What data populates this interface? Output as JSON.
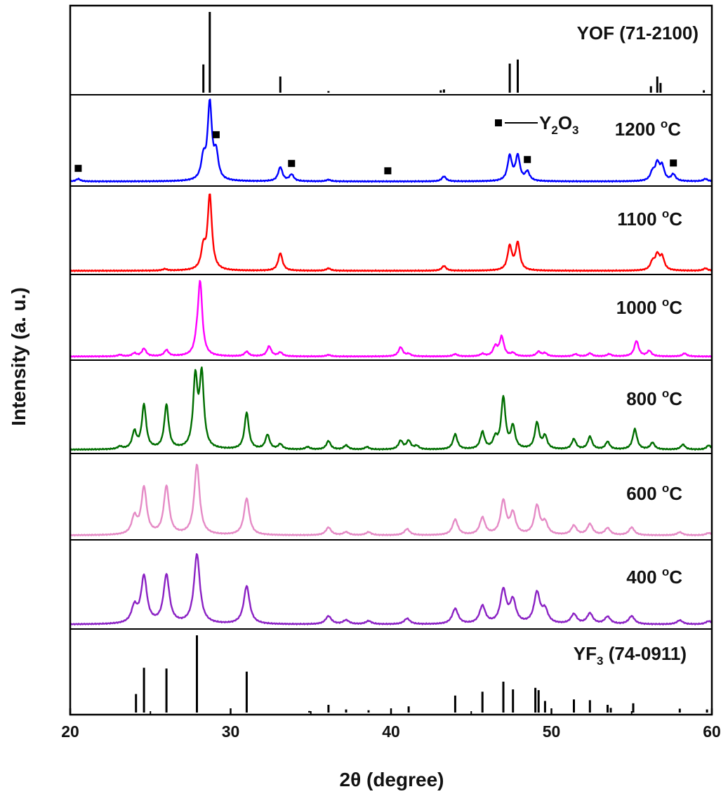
{
  "chart_data": {
    "type": "line",
    "layout": "stacked-panels",
    "xlabel": "2θ (degree)",
    "ylabel": "Intensity (a. u.)",
    "xlim": [
      20,
      60
    ],
    "xticks": [
      20,
      30,
      40,
      50,
      60
    ],
    "panels": [
      {
        "key": "yof",
        "kind": "reference",
        "label": "YOF (71-2100)",
        "label_main": "YOF (71-2100)",
        "color": "#000000",
        "sticks": [
          {
            "x": 28.3,
            "h": 0.35
          },
          {
            "x": 28.7,
            "h": 1.0
          },
          {
            "x": 33.1,
            "h": 0.2
          },
          {
            "x": 36.1,
            "h": 0.02
          },
          {
            "x": 43.1,
            "h": 0.03
          },
          {
            "x": 43.3,
            "h": 0.04
          },
          {
            "x": 47.4,
            "h": 0.36
          },
          {
            "x": 47.9,
            "h": 0.41
          },
          {
            "x": 56.2,
            "h": 0.08
          },
          {
            "x": 56.6,
            "h": 0.2
          },
          {
            "x": 56.8,
            "h": 0.12
          },
          {
            "x": 59.5,
            "h": 0.03
          }
        ]
      },
      {
        "key": "t1200",
        "kind": "pattern",
        "label": "1200 °C",
        "label_main": "1200 ",
        "label_sup": "o",
        "label_tail": "C",
        "color": "#0000ff",
        "baseline": 0.03,
        "width": 0.16,
        "peaks": [
          {
            "x": 20.5,
            "h": 0.03
          },
          {
            "x": 28.3,
            "h": 0.25
          },
          {
            "x": 28.7,
            "h": 0.92
          },
          {
            "x": 29.1,
            "h": 0.3
          },
          {
            "x": 33.1,
            "h": 0.17
          },
          {
            "x": 33.8,
            "h": 0.08
          },
          {
            "x": 36.1,
            "h": 0.02
          },
          {
            "x": 43.3,
            "h": 0.06
          },
          {
            "x": 47.4,
            "h": 0.3
          },
          {
            "x": 47.9,
            "h": 0.3
          },
          {
            "x": 48.5,
            "h": 0.11
          },
          {
            "x": 56.3,
            "h": 0.1
          },
          {
            "x": 56.6,
            "h": 0.2
          },
          {
            "x": 56.9,
            "h": 0.17
          },
          {
            "x": 57.6,
            "h": 0.08
          },
          {
            "x": 59.6,
            "h": 0.03
          }
        ],
        "markers": [
          20.5,
          29.1,
          33.8,
          39.8,
          48.5,
          57.6
        ],
        "marker_legend": {
          "label": "Y",
          "sub1": "2",
          "mid": "O",
          "sub2": "3"
        }
      },
      {
        "key": "t1100",
        "kind": "pattern",
        "label": "1100 °C",
        "label_main": "1100 ",
        "label_sup": "o",
        "label_tail": "C",
        "color": "#ff0000",
        "baseline": 0.02,
        "width": 0.16,
        "peaks": [
          {
            "x": 25.9,
            "h": 0.02
          },
          {
            "x": 28.3,
            "h": 0.26
          },
          {
            "x": 28.7,
            "h": 0.93
          },
          {
            "x": 33.1,
            "h": 0.22
          },
          {
            "x": 36.1,
            "h": 0.03
          },
          {
            "x": 43.3,
            "h": 0.06
          },
          {
            "x": 47.4,
            "h": 0.3
          },
          {
            "x": 47.9,
            "h": 0.34
          },
          {
            "x": 56.3,
            "h": 0.1
          },
          {
            "x": 56.6,
            "h": 0.18
          },
          {
            "x": 56.9,
            "h": 0.16
          },
          {
            "x": 59.6,
            "h": 0.03
          }
        ]
      },
      {
        "key": "t1000",
        "kind": "pattern",
        "label": "1000 °C",
        "label_main": "1000 ",
        "label_sup": "o",
        "label_tail": "C",
        "color": "#ff00ff",
        "baseline": 0.02,
        "width": 0.16,
        "peaks": [
          {
            "x": 23.1,
            "h": 0.02
          },
          {
            "x": 24.0,
            "h": 0.04
          },
          {
            "x": 24.6,
            "h": 0.1
          },
          {
            "x": 26.0,
            "h": 0.08
          },
          {
            "x": 27.9,
            "h": 0.12
          },
          {
            "x": 28.1,
            "h": 0.94
          },
          {
            "x": 31.0,
            "h": 0.06
          },
          {
            "x": 32.4,
            "h": 0.13
          },
          {
            "x": 33.1,
            "h": 0.05
          },
          {
            "x": 36.1,
            "h": 0.02
          },
          {
            "x": 40.6,
            "h": 0.12
          },
          {
            "x": 41.1,
            "h": 0.03
          },
          {
            "x": 44.0,
            "h": 0.03
          },
          {
            "x": 45.7,
            "h": 0.03
          },
          {
            "x": 46.5,
            "h": 0.12
          },
          {
            "x": 46.9,
            "h": 0.25
          },
          {
            "x": 47.6,
            "h": 0.04
          },
          {
            "x": 49.2,
            "h": 0.06
          },
          {
            "x": 49.6,
            "h": 0.04
          },
          {
            "x": 51.5,
            "h": 0.03
          },
          {
            "x": 52.4,
            "h": 0.04
          },
          {
            "x": 53.6,
            "h": 0.03
          },
          {
            "x": 55.3,
            "h": 0.2
          },
          {
            "x": 56.1,
            "h": 0.07
          },
          {
            "x": 58.3,
            "h": 0.04
          }
        ]
      },
      {
        "key": "t800",
        "kind": "pattern",
        "label": "800 °C",
        "label_main": "800 ",
        "label_sup": "o",
        "label_tail": "C",
        "color": "#006e00",
        "baseline": 0.02,
        "width": 0.16,
        "peaks": [
          {
            "x": 23.1,
            "h": 0.03
          },
          {
            "x": 24.0,
            "h": 0.2
          },
          {
            "x": 24.6,
            "h": 0.52
          },
          {
            "x": 26.0,
            "h": 0.52
          },
          {
            "x": 27.8,
            "h": 0.82
          },
          {
            "x": 28.2,
            "h": 0.85
          },
          {
            "x": 31.0,
            "h": 0.43
          },
          {
            "x": 32.3,
            "h": 0.17
          },
          {
            "x": 33.1,
            "h": 0.06
          },
          {
            "x": 34.8,
            "h": 0.03
          },
          {
            "x": 36.1,
            "h": 0.1
          },
          {
            "x": 37.2,
            "h": 0.05
          },
          {
            "x": 38.5,
            "h": 0.03
          },
          {
            "x": 40.6,
            "h": 0.1
          },
          {
            "x": 41.1,
            "h": 0.1
          },
          {
            "x": 41.6,
            "h": 0.04
          },
          {
            "x": 44.0,
            "h": 0.18
          },
          {
            "x": 45.7,
            "h": 0.2
          },
          {
            "x": 46.5,
            "h": 0.12
          },
          {
            "x": 47.0,
            "h": 0.6
          },
          {
            "x": 47.6,
            "h": 0.26
          },
          {
            "x": 49.1,
            "h": 0.31
          },
          {
            "x": 49.6,
            "h": 0.15
          },
          {
            "x": 51.4,
            "h": 0.12
          },
          {
            "x": 52.4,
            "h": 0.15
          },
          {
            "x": 53.5,
            "h": 0.09
          },
          {
            "x": 55.2,
            "h": 0.24
          },
          {
            "x": 56.3,
            "h": 0.08
          },
          {
            "x": 58.2,
            "h": 0.06
          },
          {
            "x": 59.8,
            "h": 0.05
          }
        ]
      },
      {
        "key": "t600",
        "kind": "pattern",
        "label": "600 °C",
        "label_main": "600 ",
        "label_sup": "o",
        "label_tail": "C",
        "color": "#e58bc6",
        "baseline": 0.03,
        "width": 0.2,
        "peaks": [
          {
            "x": 24.0,
            "h": 0.22
          },
          {
            "x": 24.6,
            "h": 0.6
          },
          {
            "x": 26.0,
            "h": 0.62
          },
          {
            "x": 27.9,
            "h": 0.9
          },
          {
            "x": 31.0,
            "h": 0.47
          },
          {
            "x": 36.1,
            "h": 0.1
          },
          {
            "x": 37.2,
            "h": 0.04
          },
          {
            "x": 38.6,
            "h": 0.04
          },
          {
            "x": 41.0,
            "h": 0.08
          },
          {
            "x": 44.0,
            "h": 0.2
          },
          {
            "x": 45.7,
            "h": 0.22
          },
          {
            "x": 47.0,
            "h": 0.43
          },
          {
            "x": 47.6,
            "h": 0.27
          },
          {
            "x": 49.1,
            "h": 0.37
          },
          {
            "x": 49.6,
            "h": 0.15
          },
          {
            "x": 51.4,
            "h": 0.12
          },
          {
            "x": 52.4,
            "h": 0.14
          },
          {
            "x": 53.5,
            "h": 0.09
          },
          {
            "x": 55.0,
            "h": 0.1
          },
          {
            "x": 58.0,
            "h": 0.04
          },
          {
            "x": 59.8,
            "h": 0.03
          }
        ]
      },
      {
        "key": "t400",
        "kind": "pattern",
        "label": "400 °C",
        "label_main": "400 ",
        "label_sup": "o",
        "label_tail": "C",
        "color": "#8b22c4",
        "baseline": 0.03,
        "width": 0.22,
        "peaks": [
          {
            "x": 24.0,
            "h": 0.2
          },
          {
            "x": 24.6,
            "h": 0.58
          },
          {
            "x": 26.0,
            "h": 0.6
          },
          {
            "x": 27.9,
            "h": 0.86
          },
          {
            "x": 31.0,
            "h": 0.47
          },
          {
            "x": 36.1,
            "h": 0.1
          },
          {
            "x": 37.2,
            "h": 0.05
          },
          {
            "x": 38.6,
            "h": 0.04
          },
          {
            "x": 41.0,
            "h": 0.07
          },
          {
            "x": 44.0,
            "h": 0.19
          },
          {
            "x": 45.7,
            "h": 0.22
          },
          {
            "x": 47.0,
            "h": 0.41
          },
          {
            "x": 47.6,
            "h": 0.28
          },
          {
            "x": 49.1,
            "h": 0.38
          },
          {
            "x": 49.6,
            "h": 0.16
          },
          {
            "x": 51.4,
            "h": 0.12
          },
          {
            "x": 52.4,
            "h": 0.13
          },
          {
            "x": 53.5,
            "h": 0.09
          },
          {
            "x": 55.0,
            "h": 0.1
          },
          {
            "x": 58.0,
            "h": 0.05
          },
          {
            "x": 59.8,
            "h": 0.04
          }
        ]
      },
      {
        "key": "yf3",
        "kind": "reference",
        "label": "YF3 (74-0911)",
        "label_main": "YF",
        "label_sub": "3",
        "label_tail": " (74-0911)",
        "color": "#000000",
        "sticks": [
          {
            "x": 24.1,
            "h": 0.24
          },
          {
            "x": 24.6,
            "h": 0.58
          },
          {
            "x": 26.0,
            "h": 0.57
          },
          {
            "x": 27.9,
            "h": 1.0
          },
          {
            "x": 31.0,
            "h": 0.53
          },
          {
            "x": 34.9,
            "h": 0.02
          },
          {
            "x": 36.1,
            "h": 0.1
          },
          {
            "x": 37.2,
            "h": 0.04
          },
          {
            "x": 38.6,
            "h": 0.03
          },
          {
            "x": 41.1,
            "h": 0.08
          },
          {
            "x": 44.0,
            "h": 0.22
          },
          {
            "x": 45.7,
            "h": 0.27
          },
          {
            "x": 47.0,
            "h": 0.4
          },
          {
            "x": 47.6,
            "h": 0.3
          },
          {
            "x": 49.0,
            "h": 0.32
          },
          {
            "x": 49.2,
            "h": 0.29
          },
          {
            "x": 49.6,
            "h": 0.15
          },
          {
            "x": 51.4,
            "h": 0.17
          },
          {
            "x": 52.4,
            "h": 0.16
          },
          {
            "x": 53.5,
            "h": 0.1
          },
          {
            "x": 53.7,
            "h": 0.06
          },
          {
            "x": 55.1,
            "h": 0.12
          },
          {
            "x": 58.0,
            "h": 0.05
          },
          {
            "x": 59.7,
            "h": 0.04
          }
        ]
      }
    ]
  }
}
